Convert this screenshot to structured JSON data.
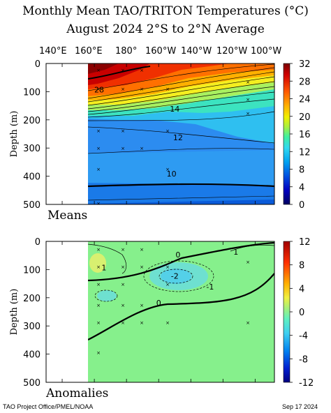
{
  "header": {
    "title_line1": "Monthly Mean TAO/TRITON Temperatures (°C)",
    "title_line2": "August 2024    2°S to 2°N Average"
  },
  "footer": {
    "credit": "TAO Project Office/PMEL/NOAA",
    "date": "Sep 17 2024"
  },
  "chart_data": [
    {
      "type": "heatmap",
      "title": "Monthly Mean TAO/TRITON Temperatures (°C) August 2024 2°S to 2°N Average",
      "panel_label": "Means",
      "xlabel": "",
      "ylabel": "Depth (m)",
      "x_tick_labels": [
        "140°E",
        "160°E",
        "180°",
        "160°W",
        "140°W",
        "120°W",
        "100°W"
      ],
      "x_ticks_deg_east": [
        140,
        160,
        180,
        200,
        220,
        240,
        260
      ],
      "xlim_deg_east": [
        130,
        272
      ],
      "y_ticks": [
        0,
        100,
        200,
        300,
        400,
        500
      ],
      "ylim": [
        0,
        500
      ],
      "y_inverted": true,
      "data_start_lon_deg_east": 156,
      "colorbar": {
        "ticks": [
          0,
          4,
          8,
          12,
          16,
          20,
          24,
          28,
          32
        ],
        "range": [
          0,
          32
        ]
      },
      "contour_labels": [
        {
          "text": "28",
          "lon": 163,
          "depth": 100
        },
        {
          "text": "14",
          "lon": 210,
          "depth": 168
        },
        {
          "text": "12",
          "lon": 212,
          "depth": 270
        },
        {
          "text": "10",
          "lon": 208,
          "depth": 398
        }
      ],
      "isotherms": [
        {
          "value": 28,
          "depths": [
            [
              156,
              95
            ],
            [
              170,
              75
            ],
            [
              190,
              50
            ],
            [
              210,
              20
            ],
            [
              230,
              5
            ]
          ]
        },
        {
          "value": 20,
          "depths": [
            [
              156,
              148
            ],
            [
              180,
              135
            ],
            [
              200,
              118
            ],
            [
              220,
              95
            ],
            [
              240,
              75
            ],
            [
              272,
              45
            ]
          ]
        },
        {
          "value": 14,
          "depths": [
            [
              156,
              190
            ],
            [
              180,
              185
            ],
            [
              200,
              175
            ],
            [
              220,
              155
            ],
            [
              240,
              130
            ],
            [
              272,
              115
            ]
          ]
        },
        {
          "value": 12,
          "depths": [
            [
              156,
              270
            ],
            [
              180,
              272
            ],
            [
              200,
              272
            ],
            [
              220,
              275
            ],
            [
              240,
              282
            ],
            [
              272,
              292
            ]
          ]
        },
        {
          "value": 10,
          "depths": [
            [
              156,
              385
            ],
            [
              180,
              392
            ],
            [
              200,
              392
            ],
            [
              220,
              392
            ],
            [
              240,
              388
            ],
            [
              272,
              382
            ]
          ]
        }
      ]
    },
    {
      "type": "heatmap",
      "panel_label": "Anomalies",
      "xlabel": "",
      "ylabel": "Depth (m)",
      "xlim_deg_east": [
        130,
        272
      ],
      "y_ticks": [
        0,
        100,
        200,
        300,
        400,
        500
      ],
      "ylim": [
        0,
        500
      ],
      "y_inverted": true,
      "data_start_lon_deg_east": 156,
      "colorbar": {
        "ticks": [
          -12,
          -8,
          -4,
          0,
          4,
          8,
          12
        ],
        "range": [
          -12,
          12
        ]
      },
      "contour_labels": [
        {
          "text": "1",
          "lon": 166,
          "depth": 100
        },
        {
          "text": "0",
          "lon": 212,
          "depth": 55
        },
        {
          "text": "1",
          "lon": 248,
          "depth": 45
        },
        {
          "text": "-2",
          "lon": 210,
          "depth": 130
        },
        {
          "text": "-1",
          "lon": 232,
          "depth": 168
        },
        {
          "text": "0",
          "lon": 200,
          "depth": 225
        }
      ]
    }
  ]
}
